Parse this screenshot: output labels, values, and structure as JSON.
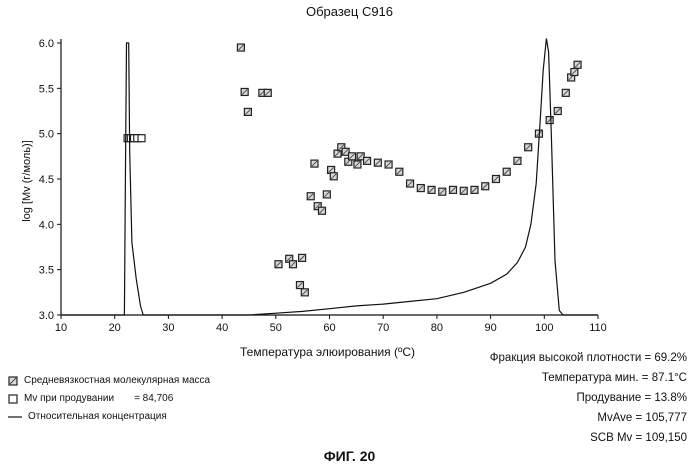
{
  "figure_label": "ФИГ. 20",
  "chart_data": {
    "type": "line",
    "title": "Образец С916",
    "xlabel": "Температура элюирования (ºС)",
    "ylabel": "log [Mv (г/моль)]",
    "xlim": [
      10,
      110
    ],
    "ylim": [
      3.0,
      6.0
    ],
    "x_ticks": [
      10,
      20,
      30,
      40,
      50,
      60,
      70,
      80,
      90,
      100,
      110
    ],
    "y_ticks": [
      "3.0",
      "3.5",
      "4.0",
      "4.5",
      "5.0",
      "5.5",
      "6.0"
    ],
    "grid": false,
    "series": [
      {
        "name": "Средневязкостная молекулярная масса",
        "marker": "square-hatched",
        "points": [
          [
            43.5,
            5.95
          ],
          [
            44.2,
            5.46
          ],
          [
            44.8,
            5.24
          ],
          [
            47.5,
            5.45
          ],
          [
            48.5,
            5.45
          ],
          [
            50.5,
            3.56
          ],
          [
            52.5,
            3.62
          ],
          [
            53.2,
            3.56
          ],
          [
            54.5,
            3.33
          ],
          [
            54.9,
            3.63
          ],
          [
            55.4,
            3.25
          ],
          [
            56.5,
            4.31
          ],
          [
            57.2,
            4.67
          ],
          [
            57.8,
            4.2
          ],
          [
            58.6,
            4.15
          ],
          [
            59.5,
            4.33
          ],
          [
            60.3,
            4.6
          ],
          [
            60.8,
            4.53
          ],
          [
            61.5,
            4.78
          ],
          [
            62.2,
            4.85
          ],
          [
            63.0,
            4.8
          ],
          [
            63.5,
            4.69
          ],
          [
            64.2,
            4.75
          ],
          [
            65.2,
            4.66
          ],
          [
            65.8,
            4.75
          ],
          [
            67.0,
            4.7
          ],
          [
            69.0,
            4.68
          ],
          [
            71.0,
            4.66
          ],
          [
            73.0,
            4.58
          ],
          [
            75.0,
            4.45
          ],
          [
            77.0,
            4.4
          ],
          [
            79.0,
            4.38
          ],
          [
            81.0,
            4.36
          ],
          [
            83.0,
            4.38
          ],
          [
            85.0,
            4.37
          ],
          [
            87.0,
            4.38
          ],
          [
            89.0,
            4.42
          ],
          [
            91.0,
            4.5
          ],
          [
            93.0,
            4.58
          ],
          [
            95.0,
            4.7
          ],
          [
            97.0,
            4.85
          ],
          [
            99.0,
            5.0
          ],
          [
            101.0,
            5.15
          ],
          [
            102.5,
            5.25
          ],
          [
            104.0,
            5.45
          ],
          [
            105.0,
            5.62
          ],
          [
            105.6,
            5.68
          ],
          [
            106.2,
            5.76
          ]
        ]
      },
      {
        "name": "Mv при продувании",
        "value_label": "= 84,706",
        "marker": "square-open",
        "points": [
          [
            22.4,
            4.95
          ],
          [
            23.0,
            4.95
          ],
          [
            23.6,
            4.95
          ],
          [
            24.2,
            4.95
          ],
          [
            25.0,
            4.95
          ]
        ]
      },
      {
        "name": "Относительная концентрация",
        "marker": "none",
        "points": [
          [
            10,
            3.0
          ],
          [
            21.8,
            3.0
          ],
          [
            22.0,
            4.5
          ],
          [
            22.2,
            6.0
          ],
          [
            22.6,
            6.0
          ],
          [
            22.8,
            4.8
          ],
          [
            23.2,
            3.8
          ],
          [
            24.0,
            3.4
          ],
          [
            24.8,
            3.1
          ],
          [
            25.3,
            3.0
          ],
          [
            45,
            3.0
          ],
          [
            50,
            3.02
          ],
          [
            55,
            3.04
          ],
          [
            60,
            3.07
          ],
          [
            65,
            3.1
          ],
          [
            70,
            3.12
          ],
          [
            75,
            3.15
          ],
          [
            80,
            3.18
          ],
          [
            85,
            3.25
          ],
          [
            90,
            3.35
          ],
          [
            93,
            3.45
          ],
          [
            95,
            3.58
          ],
          [
            96.5,
            3.75
          ],
          [
            97.5,
            4.0
          ],
          [
            98.5,
            4.45
          ],
          [
            99.3,
            5.2
          ],
          [
            99.8,
            5.7
          ],
          [
            100.4,
            6.05
          ],
          [
            100.8,
            5.9
          ],
          [
            101.3,
            5.0
          ],
          [
            102.0,
            3.6
          ],
          [
            102.8,
            3.05
          ],
          [
            103.5,
            3.0
          ],
          [
            110,
            3.0
          ]
        ]
      }
    ],
    "legend": [
      {
        "marker": "square-hatched",
        "label": "Средневязкостная молекулярная масса"
      },
      {
        "marker": "square-open",
        "label": "Mv при продувании",
        "value": "= 84,706"
      },
      {
        "marker": "line",
        "label": "Относительная концентрация"
      }
    ],
    "annotations": [
      "Фракция высокой плотности = 69.2%",
      "Температура мин. = 87.1°C",
      "Продувание = 13.8%",
      "MvAve = 105,777",
      "SCB Mv = 109,150"
    ]
  }
}
